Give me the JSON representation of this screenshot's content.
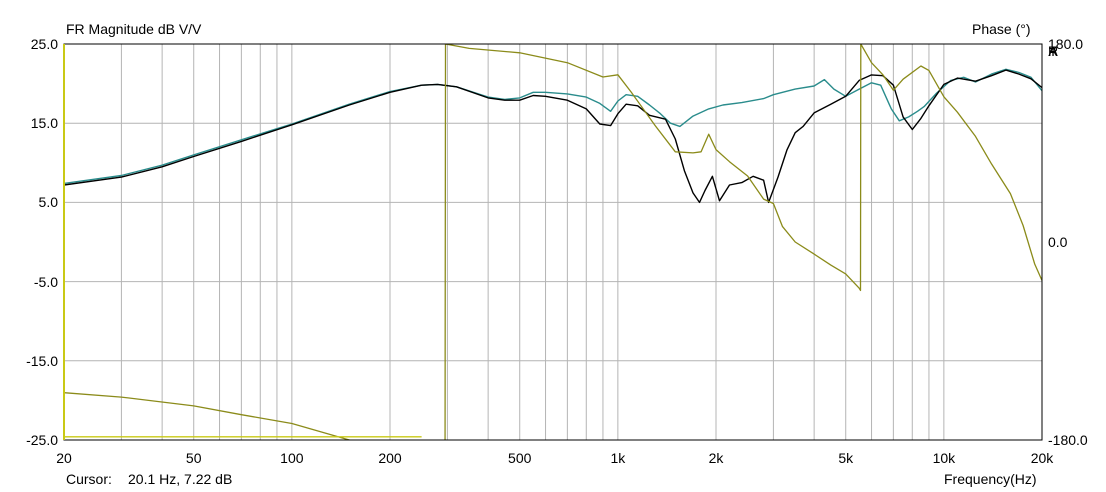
{
  "header": {
    "left_title": "FR Magnitude dB V/V",
    "right_title": "Phase (°)",
    "logo_letters": [
      "A",
      "R",
      "T",
      "A"
    ]
  },
  "footer": {
    "cursor_label": "Cursor:",
    "cursor_value": "20.1 Hz, 7.22 dB",
    "xlabel": "Frequency(Hz)"
  },
  "chart_data": {
    "type": "line",
    "title": "FR Magnitude dB V/V",
    "xlabel": "Frequency(Hz)",
    "ylabel": "FR Magnitude dB V/V",
    "y2label": "Phase (°)",
    "x_scale": "log",
    "xlim": [
      20,
      20000
    ],
    "ylim": [
      -25,
      25
    ],
    "y2lim": [
      -180,
      180
    ],
    "grid": true,
    "x_ticks": [
      {
        "value": 20,
        "label": "20"
      },
      {
        "value": 50,
        "label": "50"
      },
      {
        "value": 100,
        "label": "100"
      },
      {
        "value": 200,
        "label": "200"
      },
      {
        "value": 500,
        "label": "500"
      },
      {
        "value": 1000,
        "label": "1k"
      },
      {
        "value": 2000,
        "label": "2k"
      },
      {
        "value": 5000,
        "label": "5k"
      },
      {
        "value": 10000,
        "label": "10k"
      },
      {
        "value": 20000,
        "label": "20k"
      }
    ],
    "y_ticks": [
      {
        "value": 25,
        "label": "25.0"
      },
      {
        "value": 15,
        "label": "15.0"
      },
      {
        "value": 5,
        "label": "5.0"
      },
      {
        "value": -5,
        "label": "-5.0"
      },
      {
        "value": -15,
        "label": "-15.0"
      },
      {
        "value": -25,
        "label": "-25.0"
      }
    ],
    "y2_ticks": [
      {
        "value": 180,
        "label": "180.0"
      },
      {
        "value": 0,
        "label": "0.0"
      },
      {
        "value": -180,
        "label": "-180.0"
      }
    ],
    "series": [
      {
        "color": "#2a8c8c",
        "axis": "left",
        "points": [
          [
            20,
            7.4
          ],
          [
            30,
            8.4
          ],
          [
            40,
            9.7
          ],
          [
            50,
            11.0
          ],
          [
            70,
            12.9
          ],
          [
            100,
            14.9
          ],
          [
            150,
            17.4
          ],
          [
            200,
            19.0
          ],
          [
            250,
            19.8
          ],
          [
            280,
            19.9
          ],
          [
            320,
            19.6
          ],
          [
            400,
            18.3
          ],
          [
            450,
            18.0
          ],
          [
            500,
            18.2
          ],
          [
            550,
            18.9
          ],
          [
            600,
            18.9
          ],
          [
            700,
            18.7
          ],
          [
            800,
            18.3
          ],
          [
            880,
            17.5
          ],
          [
            950,
            16.5
          ],
          [
            1000,
            17.8
          ],
          [
            1060,
            18.6
          ],
          [
            1150,
            18.4
          ],
          [
            1250,
            17.3
          ],
          [
            1350,
            16.2
          ],
          [
            1450,
            15.0
          ],
          [
            1550,
            14.6
          ],
          [
            1700,
            15.9
          ],
          [
            1900,
            16.8
          ],
          [
            2100,
            17.3
          ],
          [
            2400,
            17.6
          ],
          [
            2800,
            18.1
          ],
          [
            3000,
            18.6
          ],
          [
            3500,
            19.3
          ],
          [
            4000,
            19.7
          ],
          [
            4300,
            20.5
          ],
          [
            4600,
            19.3
          ],
          [
            5000,
            18.4
          ],
          [
            5500,
            19.3
          ],
          [
            6000,
            20.1
          ],
          [
            6400,
            19.8
          ],
          [
            6900,
            16.8
          ],
          [
            7300,
            15.3
          ],
          [
            7800,
            15.8
          ],
          [
            8300,
            16.5
          ],
          [
            8700,
            17.1
          ],
          [
            9500,
            18.8
          ],
          [
            10500,
            20.4
          ],
          [
            11500,
            20.8
          ],
          [
            12500,
            20.2
          ],
          [
            14000,
            21.2
          ],
          [
            15500,
            21.8
          ],
          [
            17000,
            21.4
          ],
          [
            18500,
            20.8
          ],
          [
            20000,
            19.1
          ]
        ]
      },
      {
        "color": "#000000",
        "axis": "left",
        "points": [
          [
            20,
            7.2
          ],
          [
            30,
            8.2
          ],
          [
            40,
            9.5
          ],
          [
            50,
            10.8
          ],
          [
            70,
            12.7
          ],
          [
            100,
            14.8
          ],
          [
            150,
            17.3
          ],
          [
            200,
            18.9
          ],
          [
            250,
            19.8
          ],
          [
            280,
            19.9
          ],
          [
            320,
            19.6
          ],
          [
            400,
            18.2
          ],
          [
            450,
            17.9
          ],
          [
            500,
            17.9
          ],
          [
            550,
            18.5
          ],
          [
            600,
            18.4
          ],
          [
            700,
            17.9
          ],
          [
            800,
            16.8
          ],
          [
            880,
            14.9
          ],
          [
            950,
            14.7
          ],
          [
            1000,
            16.2
          ],
          [
            1060,
            17.4
          ],
          [
            1150,
            17.2
          ],
          [
            1250,
            16.0
          ],
          [
            1400,
            15.5
          ],
          [
            1500,
            13.0
          ],
          [
            1600,
            9.0
          ],
          [
            1700,
            6.2
          ],
          [
            1780,
            5.0
          ],
          [
            1850,
            6.5
          ],
          [
            1950,
            8.3
          ],
          [
            2050,
            5.2
          ],
          [
            2200,
            7.2
          ],
          [
            2400,
            7.5
          ],
          [
            2600,
            8.3
          ],
          [
            2800,
            7.8
          ],
          [
            2900,
            5.0
          ],
          [
            3100,
            8.2
          ],
          [
            3300,
            11.6
          ],
          [
            3500,
            13.8
          ],
          [
            3700,
            14.6
          ],
          [
            4000,
            16.3
          ],
          [
            4500,
            17.4
          ],
          [
            5000,
            18.4
          ],
          [
            5500,
            20.4
          ],
          [
            6000,
            21.1
          ],
          [
            6500,
            21.0
          ],
          [
            7000,
            19.8
          ],
          [
            7500,
            15.8
          ],
          [
            8000,
            14.2
          ],
          [
            8500,
            15.6
          ],
          [
            9000,
            17.2
          ],
          [
            10000,
            19.9
          ],
          [
            11000,
            20.7
          ],
          [
            12500,
            20.3
          ],
          [
            14000,
            21.0
          ],
          [
            15500,
            21.7
          ],
          [
            17000,
            21.2
          ],
          [
            18500,
            20.6
          ],
          [
            20000,
            19.5
          ]
        ]
      },
      {
        "color": "#8b8b1a",
        "axis": "right",
        "points": [
          [
            20,
            -137
          ],
          [
            30,
            -141
          ],
          [
            50,
            -149
          ],
          [
            70,
            -157
          ],
          [
            100,
            -165
          ],
          [
            150,
            -180
          ],
          [
            200,
            -196
          ],
          [
            250,
            -212
          ],
          [
            295,
            -229
          ],
          [
            296,
            180
          ],
          [
            350,
            176
          ],
          [
            500,
            172
          ],
          [
            700,
            163
          ],
          [
            900,
            150
          ],
          [
            1000,
            152
          ],
          [
            1100,
            136
          ],
          [
            1300,
            106
          ],
          [
            1500,
            82
          ],
          [
            1700,
            81
          ],
          [
            1800,
            82
          ],
          [
            1900,
            98
          ],
          [
            2000,
            84
          ],
          [
            2200,
            73
          ],
          [
            2500,
            60
          ],
          [
            2800,
            39
          ],
          [
            3000,
            35
          ],
          [
            3200,
            14
          ],
          [
            3500,
            0
          ],
          [
            4000,
            -11
          ],
          [
            4500,
            -21
          ],
          [
            5000,
            -29
          ],
          [
            5500,
            -42
          ],
          [
            5550,
            -44
          ],
          [
            5560,
            180
          ],
          [
            6000,
            163
          ],
          [
            6500,
            152
          ],
          [
            7000,
            138
          ],
          [
            7500,
            148
          ],
          [
            8500,
            160
          ],
          [
            9000,
            156
          ],
          [
            10000,
            132
          ],
          [
            11000,
            118
          ],
          [
            12500,
            96
          ],
          [
            14000,
            71
          ],
          [
            16000,
            44
          ],
          [
            17500,
            15
          ],
          [
            19000,
            -20
          ],
          [
            20000,
            -35
          ]
        ]
      },
      {
        "color": "#c9c915",
        "axis": "left",
        "points": [
          [
            20,
            -24.6
          ],
          [
            250,
            -24.6
          ]
        ]
      }
    ]
  }
}
